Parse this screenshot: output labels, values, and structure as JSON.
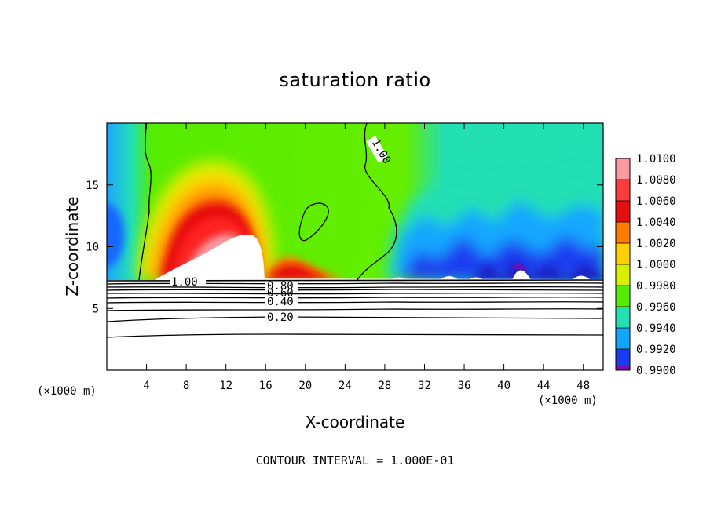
{
  "chart_data": {
    "type": "heatmap",
    "title": "saturation ratio",
    "xlabel": "X-coordinate",
    "ylabel": "Z-coordinate",
    "x_unit": "(×1000 m)",
    "xlim": [
      0,
      50
    ],
    "ylim": [
      0,
      20
    ],
    "x_ticks": [
      4,
      8,
      12,
      16,
      20,
      24,
      28,
      32,
      36,
      40,
      44,
      48
    ],
    "y_ticks": [
      5,
      10,
      15
    ],
    "colorbar": {
      "levels": [
        1.01,
        1.008,
        1.006,
        1.004,
        1.002,
        1.0,
        0.998,
        0.996,
        0.994,
        0.992,
        0.99
      ],
      "labels": [
        "1.0100",
        "1.0080",
        "1.0060",
        "1.0040",
        "1.0020",
        "1.0000",
        "0.9980",
        "0.9960",
        "0.9940",
        "0.9920",
        "0.9900"
      ],
      "colors": [
        "#f89aa0",
        "#ff3b3b",
        "#e60f0f",
        "#ff7a00",
        "#ffd000",
        "#d8f000",
        "#55ec00",
        "#22dfb4",
        "#12a6ff",
        "#1a3cf0",
        "#7a0ca8"
      ]
    },
    "contour_labels": [
      "1.00",
      "1.00",
      "0.80",
      "0.60",
      "0.40",
      "0.20"
    ],
    "contour_interval": "CONTOUR INTERVAL = 1.000E-01",
    "features": [
      {
        "name": "supersaturated dome",
        "x_range": [
          4,
          16
        ],
        "z_range": [
          7.3,
          16.5
        ],
        "peak": 1.01
      },
      {
        "name": "subsaturated region",
        "x_range": [
          27,
          50
        ],
        "z_range": [
          7.3,
          16
        ],
        "min": 0.99
      },
      {
        "name": "below-cloud unsaturated layer",
        "z_range": [
          0,
          7.3
        ]
      }
    ]
  }
}
